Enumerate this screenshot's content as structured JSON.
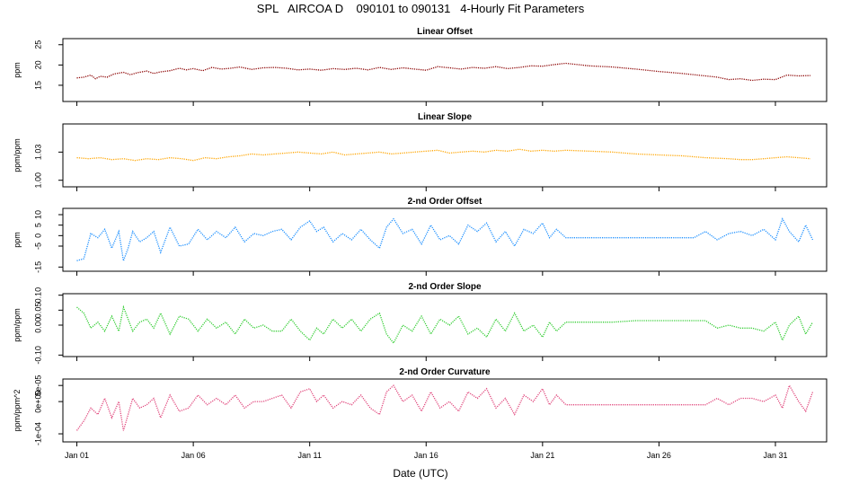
{
  "title": "SPL   AIRCOA D    090101 to 090131   4-Hourly Fit Parameters",
  "xlabel": "Date (UTC)",
  "x_ticks": [
    {
      "label": "Jan 01",
      "day": 1
    },
    {
      "label": "Jan 06",
      "day": 6
    },
    {
      "label": "Jan 11",
      "day": 11
    },
    {
      "label": "Jan 16",
      "day": 16
    },
    {
      "label": "Jan 21",
      "day": 21
    },
    {
      "label": "Jan 26",
      "day": 26
    },
    {
      "label": "Jan 31",
      "day": 31
    }
  ],
  "x_range_days": [
    0.4,
    33.2
  ],
  "chart_data": [
    {
      "type": "line",
      "title": "Linear Offset",
      "ylabel": "ppm",
      "color": "#8b0000",
      "ylim": [
        11,
        26.5
      ],
      "yticks": [
        "15",
        "20",
        "25"
      ],
      "ytick_values": [
        15,
        20,
        25
      ],
      "x": [
        1.0,
        1.3,
        1.6,
        1.8,
        2.0,
        2.3,
        2.6,
        3.0,
        3.3,
        3.6,
        4.0,
        4.3,
        4.6,
        5.0,
        5.4,
        5.7,
        6.0,
        6.4,
        6.8,
        7.2,
        7.6,
        8.0,
        8.5,
        9.0,
        9.5,
        10.0,
        10.5,
        11.0,
        11.5,
        12.0,
        12.5,
        13.0,
        13.5,
        14.0,
        14.5,
        15.0,
        15.5,
        16.0,
        16.5,
        17.0,
        17.5,
        18.0,
        18.5,
        19.0,
        19.5,
        20.0,
        20.5,
        21.0,
        21.5,
        22.0,
        23.0,
        24.0,
        25.0,
        26.0,
        27.0,
        28.0,
        28.5,
        29.0,
        29.5,
        30.0,
        30.5,
        31.0,
        31.5,
        32.0,
        32.5
      ],
      "y": [
        16.8,
        17.0,
        17.5,
        16.6,
        17.2,
        17.0,
        17.8,
        18.2,
        17.6,
        18.1,
        18.5,
        17.9,
        18.3,
        18.6,
        19.2,
        18.8,
        19.1,
        18.6,
        19.4,
        19.0,
        19.2,
        19.5,
        18.9,
        19.3,
        19.4,
        19.2,
        18.8,
        19.0,
        18.7,
        19.1,
        18.9,
        19.2,
        18.8,
        19.4,
        18.9,
        19.3,
        19.0,
        18.7,
        19.6,
        19.3,
        19.0,
        19.4,
        19.2,
        19.6,
        19.1,
        19.4,
        19.8,
        19.7,
        20.1,
        20.4,
        19.8,
        19.5,
        19.0,
        18.4,
        17.9,
        17.3,
        17.0,
        16.4,
        16.6,
        16.2,
        16.5,
        16.4,
        17.5,
        17.3,
        17.4
      ]
    },
    {
      "type": "line",
      "title": "Linear Slope",
      "ylabel": "ppm/ppm",
      "color": "#ffa500",
      "ylim": [
        0.993,
        1.06
      ],
      "yticks": [
        "1.00",
        "1.03"
      ],
      "ytick_values": [
        1.0,
        1.03
      ],
      "x": [
        1.0,
        1.5,
        2.0,
        2.5,
        3.0,
        3.5,
        4.0,
        4.5,
        5.0,
        5.5,
        6.0,
        6.5,
        7.0,
        7.5,
        8.0,
        8.5,
        9.0,
        9.5,
        10.0,
        10.5,
        11.0,
        11.5,
        12.0,
        12.5,
        13.0,
        13.5,
        14.0,
        14.5,
        15.0,
        15.5,
        16.0,
        16.5,
        17.0,
        17.5,
        18.0,
        18.5,
        19.0,
        19.5,
        20.0,
        20.5,
        21.0,
        21.5,
        22.0,
        23.0,
        24.0,
        25.0,
        26.0,
        27.0,
        28.0,
        29.0,
        29.5,
        30.0,
        30.5,
        31.0,
        31.5,
        32.0,
        32.5
      ],
      "y": [
        1.024,
        1.023,
        1.024,
        1.022,
        1.023,
        1.021,
        1.023,
        1.022,
        1.024,
        1.023,
        1.021,
        1.024,
        1.023,
        1.025,
        1.026,
        1.028,
        1.027,
        1.028,
        1.029,
        1.03,
        1.029,
        1.028,
        1.03,
        1.027,
        1.028,
        1.029,
        1.03,
        1.028,
        1.029,
        1.03,
        1.031,
        1.032,
        1.029,
        1.03,
        1.031,
        1.03,
        1.032,
        1.031,
        1.033,
        1.031,
        1.032,
        1.031,
        1.032,
        1.031,
        1.03,
        1.028,
        1.027,
        1.026,
        1.024,
        1.023,
        1.022,
        1.022,
        1.023,
        1.024,
        1.025,
        1.024,
        1.023
      ]
    },
    {
      "type": "line",
      "title": "2-nd Order Offset",
      "ylabel": "ppm",
      "color": "#1e90ff",
      "ylim": [
        -17,
        13
      ],
      "yticks": [
        "-15",
        "-5",
        "0",
        "5",
        "10"
      ],
      "ytick_values": [
        -15,
        -5,
        0,
        5,
        10
      ],
      "x": [
        1.0,
        1.3,
        1.6,
        1.9,
        2.2,
        2.5,
        2.8,
        3.0,
        3.2,
        3.4,
        3.7,
        4.0,
        4.3,
        4.6,
        5.0,
        5.4,
        5.8,
        6.2,
        6.6,
        7.0,
        7.4,
        7.8,
        8.2,
        8.6,
        9.0,
        9.4,
        9.8,
        10.2,
        10.6,
        11.0,
        11.3,
        11.6,
        12.0,
        12.4,
        12.8,
        13.2,
        13.6,
        14.0,
        14.3,
        14.6,
        15.0,
        15.4,
        15.8,
        16.2,
        16.6,
        17.0,
        17.4,
        17.8,
        18.2,
        18.6,
        19.0,
        19.4,
        19.8,
        20.2,
        20.6,
        21.0,
        21.3,
        21.6,
        22.0,
        22.5,
        23.5,
        24.5,
        25.5,
        26.2,
        27.0,
        27.5,
        28.0,
        28.5,
        29.0,
        29.5,
        30.0,
        30.5,
        31.0,
        31.3,
        31.6,
        32.0,
        32.3,
        32.6
      ],
      "y": [
        -12,
        -11,
        1,
        -1,
        3,
        -6,
        2,
        -12,
        -6,
        2,
        -3,
        -1,
        2,
        -8,
        4,
        -5,
        -4,
        3,
        -2,
        2,
        -1,
        4,
        -3,
        1,
        0,
        2,
        3,
        -2,
        4,
        7,
        2,
        4,
        -3,
        1,
        -2,
        3,
        -2,
        -6,
        4,
        8,
        1,
        3,
        -4,
        5,
        -2,
        0,
        -4,
        5,
        2,
        6,
        -3,
        2,
        -5,
        3,
        1,
        6,
        -1,
        3,
        -1,
        -1,
        -1,
        -1,
        -1,
        -1,
        -1,
        -1,
        2,
        -2,
        1,
        2,
        0,
        3,
        -2,
        8,
        2,
        -3,
        5,
        -2
      ]
    },
    {
      "type": "line",
      "title": "2-nd Order Slope",
      "ylabel": "ppm/ppm",
      "color": "#32cd32",
      "ylim": [
        -0.105,
        0.105
      ],
      "yticks": [
        "-0.10",
        "0.00",
        "0.05",
        "0.10"
      ],
      "ytick_values": [
        -0.1,
        0.0,
        0.05,
        0.1
      ],
      "x": [
        1.0,
        1.3,
        1.6,
        1.9,
        2.2,
        2.5,
        2.8,
        3.0,
        3.2,
        3.4,
        3.7,
        4.0,
        4.3,
        4.6,
        5.0,
        5.4,
        5.8,
        6.2,
        6.6,
        7.0,
        7.4,
        7.8,
        8.2,
        8.6,
        9.0,
        9.4,
        9.8,
        10.2,
        10.6,
        11.0,
        11.3,
        11.6,
        12.0,
        12.4,
        12.8,
        13.2,
        13.6,
        14.0,
        14.3,
        14.6,
        15.0,
        15.4,
        15.8,
        16.2,
        16.6,
        17.0,
        17.4,
        17.8,
        18.2,
        18.6,
        19.0,
        19.4,
        19.8,
        20.2,
        20.6,
        21.0,
        21.3,
        21.6,
        22.0,
        23.0,
        24.0,
        25.0,
        26.0,
        27.0,
        28.0,
        28.5,
        29.0,
        29.5,
        30.0,
        30.5,
        31.0,
        31.3,
        31.6,
        32.0,
        32.3,
        32.6
      ],
      "y": [
        0.06,
        0.04,
        -0.01,
        0.01,
        -0.02,
        0.03,
        -0.02,
        0.06,
        0.02,
        -0.02,
        0.01,
        0.02,
        -0.01,
        0.04,
        -0.03,
        0.03,
        0.02,
        -0.02,
        0.02,
        -0.01,
        0.01,
        -0.03,
        0.02,
        -0.01,
        0.0,
        -0.02,
        -0.02,
        0.02,
        -0.02,
        -0.05,
        -0.01,
        -0.03,
        0.02,
        -0.01,
        0.02,
        -0.02,
        0.02,
        0.04,
        -0.03,
        -0.06,
        0.0,
        -0.02,
        0.03,
        -0.03,
        0.02,
        0.0,
        0.03,
        -0.03,
        -0.01,
        -0.04,
        0.02,
        -0.02,
        0.04,
        -0.02,
        0.0,
        -0.04,
        0.01,
        -0.02,
        0.01,
        0.01,
        0.01,
        0.015,
        0.015,
        0.015,
        0.015,
        -0.01,
        0.0,
        -0.01,
        -0.01,
        -0.02,
        0.01,
        -0.05,
        0.0,
        0.03,
        -0.03,
        0.01
      ]
    },
    {
      "type": "line",
      "title": "2-nd Order Curvature",
      "ylabel": "ppm/ppm^2",
      "color": "#e0457b",
      "ylim": [
        -0.000125,
        7e-05
      ],
      "yticks": [
        "-1e-04",
        "0e+00",
        "5e-05"
      ],
      "ytick_values": [
        -0.0001,
        0.0,
        5e-05
      ],
      "x": [
        1.0,
        1.3,
        1.6,
        1.9,
        2.2,
        2.5,
        2.8,
        3.0,
        3.2,
        3.4,
        3.7,
        4.0,
        4.3,
        4.6,
        5.0,
        5.4,
        5.8,
        6.2,
        6.6,
        7.0,
        7.4,
        7.8,
        8.2,
        8.6,
        9.0,
        9.4,
        9.8,
        10.2,
        10.6,
        11.0,
        11.3,
        11.6,
        12.0,
        12.4,
        12.8,
        13.2,
        13.6,
        14.0,
        14.3,
        14.6,
        15.0,
        15.4,
        15.8,
        16.2,
        16.6,
        17.0,
        17.4,
        17.8,
        18.2,
        18.6,
        19.0,
        19.4,
        19.8,
        20.2,
        20.6,
        21.0,
        21.3,
        21.6,
        22.0,
        23.0,
        24.0,
        25.0,
        26.0,
        26.5,
        27.5,
        28.0,
        28.5,
        29.0,
        29.5,
        30.0,
        30.5,
        31.0,
        31.3,
        31.6,
        32.0,
        32.3,
        32.6
      ],
      "y": [
        -9e-05,
        -6e-05,
        -2e-05,
        -4e-05,
        1e-05,
        -5e-05,
        0.0,
        -9e-05,
        -4e-05,
        1e-05,
        -2e-05,
        -1e-05,
        1e-05,
        -5e-05,
        2e-05,
        -3e-05,
        -2e-05,
        2e-05,
        -1e-05,
        1e-05,
        -1e-05,
        2e-05,
        -2e-05,
        0.0,
        0.0,
        1e-05,
        2e-05,
        -2e-05,
        3e-05,
        4e-05,
        0.0,
        2e-05,
        -2e-05,
        0.0,
        -1e-05,
        2e-05,
        -2e-05,
        -4e-05,
        3e-05,
        5e-05,
        0.0,
        2e-05,
        -3e-05,
        3e-05,
        -2e-05,
        0.0,
        -3e-05,
        3e-05,
        1e-05,
        4e-05,
        -2e-05,
        1e-05,
        -4e-05,
        2e-05,
        0.0,
        4e-05,
        -1e-05,
        2e-05,
        -1e-05,
        -1e-05,
        -1e-05,
        -1e-05,
        -1e-05,
        -1e-05,
        -1e-05,
        -1e-05,
        1e-05,
        -1e-05,
        1e-05,
        1e-05,
        0.0,
        2e-05,
        -2e-05,
        5e-05,
        0.0,
        -3e-05,
        3e-05
      ]
    }
  ]
}
